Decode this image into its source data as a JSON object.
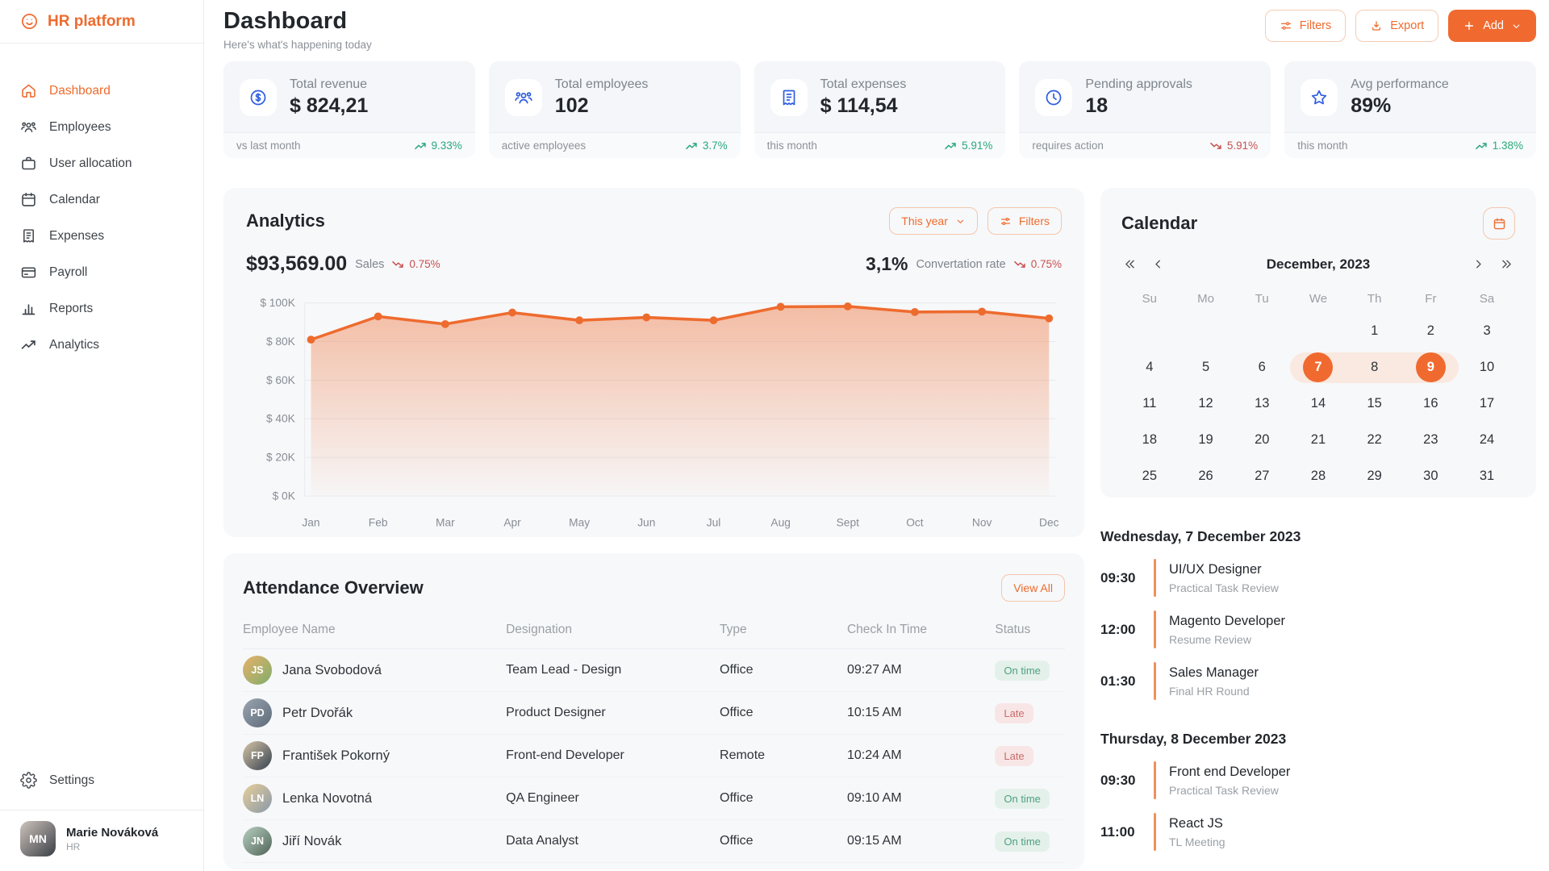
{
  "colors": {
    "accent": "#f06a30",
    "icon_blue": "#2f5de0",
    "trend_up": "#2aa87a",
    "trend_down": "#c8504f"
  },
  "sidebar": {
    "logo": "HR platform",
    "items": [
      {
        "label": "Dashboard",
        "icon": "home",
        "active": true
      },
      {
        "label": "Employees",
        "icon": "users",
        "active": false
      },
      {
        "label": "User allocation",
        "icon": "briefcase",
        "active": false
      },
      {
        "label": "Calendar",
        "icon": "calendar",
        "active": false
      },
      {
        "label": "Expenses",
        "icon": "receipt",
        "active": false
      },
      {
        "label": "Payroll",
        "icon": "card",
        "active": false
      },
      {
        "label": "Reports",
        "icon": "bar-chart",
        "active": false
      },
      {
        "label": "Analytics",
        "icon": "trending-up",
        "active": false
      }
    ],
    "settings_label": "Settings",
    "user": {
      "name": "Marie Nováková",
      "role": "HR"
    }
  },
  "header": {
    "title": "Dashboard",
    "subtitle": "Here's what's happening today",
    "filters_label": "Filters",
    "export_label": "Export",
    "add_label": "Add"
  },
  "stats": [
    {
      "icon": "dollar-circle",
      "label": "Total revenue",
      "value": "$ 824,21",
      "footer": "vs last month",
      "trend": "9.33%",
      "trend_dir": "up"
    },
    {
      "icon": "users",
      "label": "Total employees",
      "value": "102",
      "footer": "active employees",
      "trend": "3.7%",
      "trend_dir": "up"
    },
    {
      "icon": "receipt",
      "label": "Total expenses",
      "value": "$ 114,54",
      "footer": "this month",
      "trend": "5.91%",
      "trend_dir": "up"
    },
    {
      "icon": "clock",
      "label": "Pending approvals",
      "value": "18",
      "footer": "requires action",
      "trend": "5.91%",
      "trend_dir": "down"
    },
    {
      "icon": "star",
      "label": "Avg performance",
      "value": "89%",
      "footer": "this month",
      "trend": "1.38%",
      "trend_dir": "up"
    }
  ],
  "analytics": {
    "title": "Analytics",
    "period_label": "This year",
    "filters_label": "Filters",
    "sales_value": "$93,569.00",
    "sales_label": "Sales",
    "sales_trend": "0.75%",
    "sales_trend_dir": "down",
    "conversion_value": "3,1%",
    "conversion_label": "Convertation rate",
    "conversion_trend": "0.75%",
    "conversion_trend_dir": "down"
  },
  "chart_data": {
    "type": "area",
    "title": "Analytics — Sales by month",
    "x": [
      "Jan",
      "Feb",
      "Mar",
      "Apr",
      "May",
      "Jun",
      "Jul",
      "Aug",
      "Sept",
      "Oct",
      "Nov",
      "Dec"
    ],
    "series": [
      {
        "name": "Sales",
        "values": [
          81000,
          93000,
          89000,
          95000,
          91000,
          92500,
          91000,
          98000,
          98200,
          95300,
          95500,
          92000
        ]
      }
    ],
    "ylim": [
      0,
      100000
    ],
    "y_tick_values": [
      0,
      20000,
      40000,
      60000,
      80000,
      100000
    ],
    "y_tick_labels": [
      "$ 0K",
      "$ 20K",
      "$ 40K",
      "$ 60K",
      "$ 80K",
      "$ 100K"
    ],
    "grid": true,
    "legend": false,
    "line_color": "#ee6b2e"
  },
  "attendance": {
    "title": "Attendance Overview",
    "view_all_label": "View All",
    "columns": [
      "Employee Name",
      "Designation",
      "Type",
      "Check In Time",
      "Status"
    ],
    "rows": [
      {
        "name": "Jana Svobodová",
        "designation": "Team Lead - Design",
        "type": "Office",
        "check_in": "09:27 AM",
        "status": "On time",
        "status_type": "ok"
      },
      {
        "name": "Petr Dvořák",
        "designation": "Product Designer",
        "type": "Office",
        "check_in": "10:15 AM",
        "status": "Late",
        "status_type": "late"
      },
      {
        "name": "František Pokorný",
        "designation": "Front-end Developer",
        "type": "Remote",
        "check_in": "10:24 AM",
        "status": "Late",
        "status_type": "late"
      },
      {
        "name": "Lenka Novotná",
        "designation": "QA Engineer",
        "type": "Office",
        "check_in": "09:10 AM",
        "status": "On time",
        "status_type": "ok"
      },
      {
        "name": "Jiří Novák",
        "designation": "Data Analyst",
        "type": "Office",
        "check_in": "09:15 AM",
        "status": "On time",
        "status_type": "ok"
      }
    ]
  },
  "calendar": {
    "title": "Calendar",
    "month_label": "December, 2023",
    "day_headers": [
      "Su",
      "Mo",
      "Tu",
      "We",
      "Th",
      "Fr",
      "Sa"
    ],
    "weeks": [
      [
        "",
        "",
        "",
        "",
        "1",
        "2",
        "3"
      ],
      [
        "4",
        "5",
        "6",
        "7",
        "8",
        "9",
        "10"
      ],
      [
        "11",
        "12",
        "13",
        "14",
        "15",
        "16",
        "17"
      ],
      [
        "18",
        "19",
        "20",
        "21",
        "22",
        "23",
        "24"
      ],
      [
        "25",
        "26",
        "27",
        "28",
        "29",
        "30",
        "31"
      ]
    ],
    "selected_days": [
      "7",
      "9"
    ],
    "range": [
      "7",
      "9"
    ]
  },
  "schedule": {
    "days": [
      {
        "date_label": "Wednesday, 7 December 2023",
        "events": [
          {
            "time": "09:30",
            "title": "UI/UX Designer",
            "subtitle": "Practical Task Review"
          },
          {
            "time": "12:00",
            "title": "Magento Developer",
            "subtitle": "Resume Review"
          },
          {
            "time": "01:30",
            "title": "Sales Manager",
            "subtitle": "Final HR Round"
          }
        ]
      },
      {
        "date_label": "Thursday, 8 December 2023",
        "events": [
          {
            "time": "09:30",
            "title": "Front end Developer",
            "subtitle": "Practical Task Review"
          },
          {
            "time": "11:00",
            "title": "React JS",
            "subtitle": "TL Meeting"
          }
        ]
      }
    ]
  }
}
